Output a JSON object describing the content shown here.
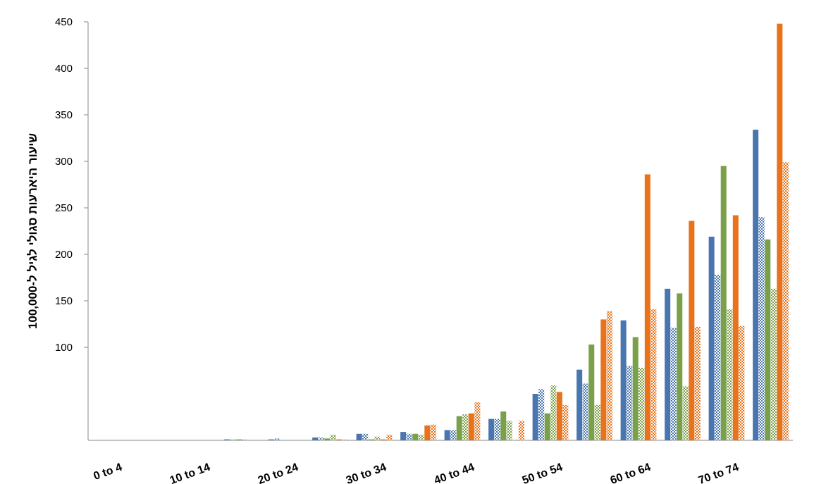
{
  "chart_data": {
    "type": "bar",
    "y_label": "שיעור היארעות סגולי לגיל ל-100,000",
    "categories": [
      "0 to 4",
      null,
      "10 to 14",
      null,
      "20 to 24",
      null,
      "30 to 34",
      null,
      "40 to 44",
      null,
      "50 to 54",
      null,
      "60 to 64",
      null,
      "70 to 74",
      null
    ],
    "series": [
      {
        "color": "#4a76b0",
        "pattern": "solid",
        "values": [
          0,
          0,
          0,
          1,
          1,
          3,
          7,
          9,
          11,
          23,
          50,
          76,
          129,
          163,
          219,
          334
        ]
      },
      {
        "color": "#4a76b0",
        "pattern": "checkered",
        "values": [
          0,
          0,
          0,
          1,
          2,
          3,
          7,
          7,
          11,
          23,
          55,
          61,
          80,
          121,
          178,
          240
        ]
      },
      {
        "color": "#7ba04a",
        "pattern": "solid",
        "values": [
          0,
          0,
          0,
          1,
          0,
          2,
          1,
          7,
          26,
          31,
          29,
          103,
          111,
          158,
          295,
          216
        ]
      },
      {
        "color": "#7ba04a",
        "pattern": "checkered",
        "values": [
          0,
          0,
          0,
          1,
          0,
          6,
          4,
          6,
          28,
          21,
          59,
          38,
          78,
          58,
          141,
          163
        ]
      },
      {
        "color": "#e8731c",
        "pattern": "solid",
        "values": [
          0,
          0,
          0,
          0,
          0,
          1,
          1,
          16,
          29,
          0,
          52,
          130,
          286,
          236,
          242,
          448
        ]
      },
      {
        "color": "#e8731c",
        "pattern": "checkered",
        "values": [
          0,
          0,
          0,
          0,
          0,
          1,
          6,
          17,
          41,
          21,
          38,
          139,
          141,
          122,
          123,
          299
        ]
      }
    ],
    "ylim": [
      0,
      450
    ],
    "yticks": [
      100,
      150,
      200,
      250,
      300,
      350,
      400,
      450
    ],
    "grid": false
  }
}
